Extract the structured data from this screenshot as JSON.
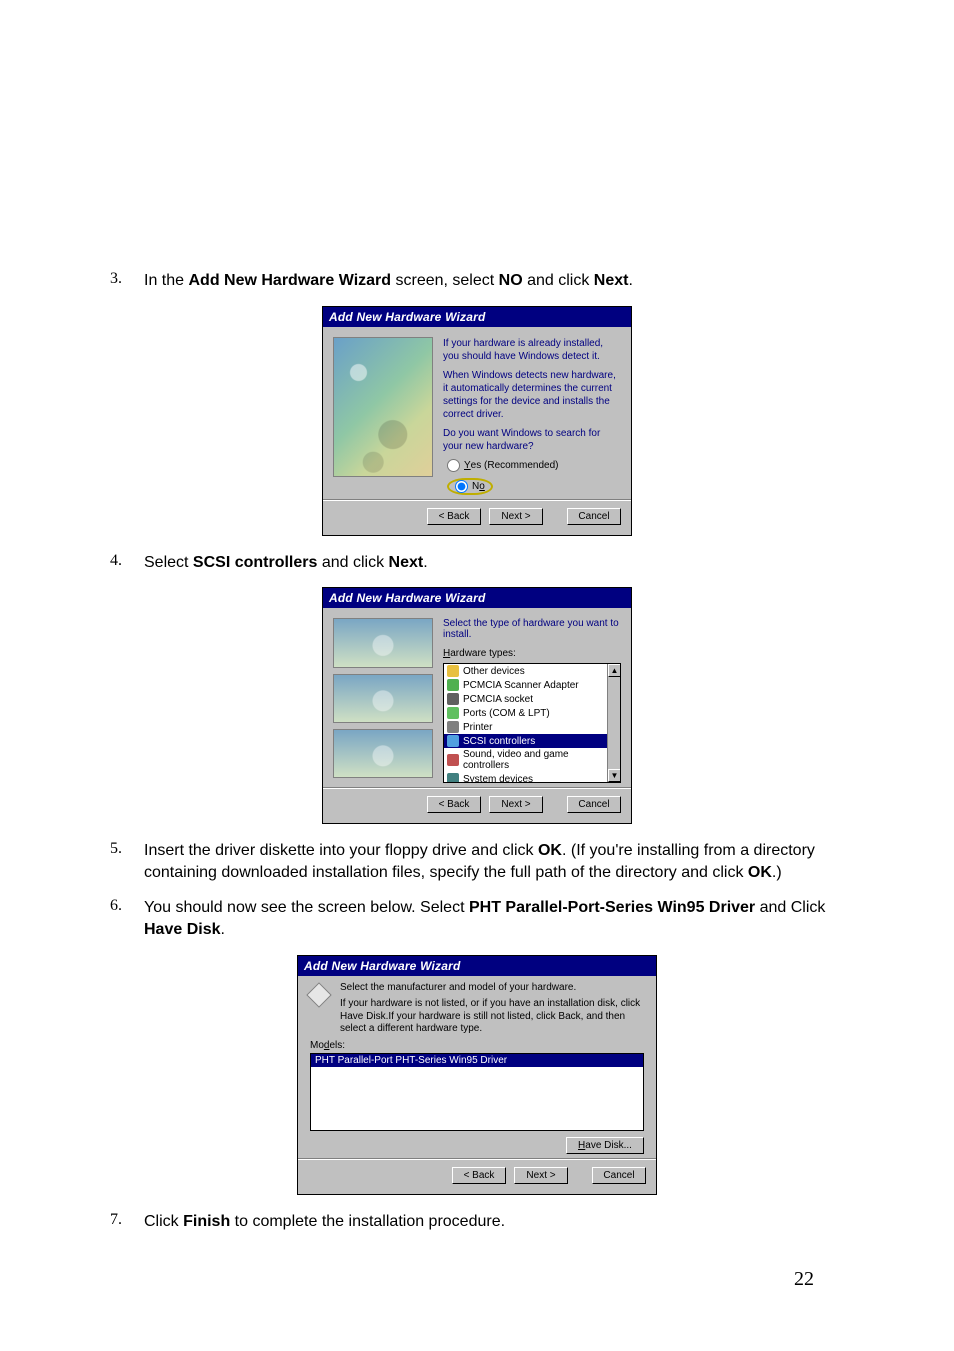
{
  "steps": {
    "s3_before": "In the ",
    "s3_b1": "Add New Hardware Wizard",
    "s3_mid": " screen, select ",
    "s3_b2": "NO",
    "s3_after1": " and click ",
    "s3_b3": "Next",
    "s3_end": ".",
    "s4_before": "Select ",
    "s4_b1": "SCSI controllers",
    "s4_mid": " and click ",
    "s4_b2": "Next",
    "s4_end": ".",
    "s5_before": "Insert the driver diskette into your floppy drive and click ",
    "s5_b1": "OK",
    "s5_mid1": ". (If you're installing from a directory containing downloaded installation files, specify the full path of the directory and click ",
    "s5_b2": "OK",
    "s5_end": ".)",
    "s6_before": "You should now see the screen below.  Select ",
    "s6_b1": "PHT Parallel-Port-Series Win95 Driver",
    "s6_mid": " and Click ",
    "s6_b2": "Have Disk",
    "s6_end": ".",
    "s7_before": "Click ",
    "s7_b1": "Finish",
    "s7_after": " to complete the installation procedure."
  },
  "dlg1": {
    "title": "Add New Hardware Wizard",
    "line1": "If your hardware is already installed, you should have Windows detect it.",
    "line2": "When Windows detects new hardware, it automatically determines the current settings for the device and installs the correct driver.",
    "line3": "Do you want Windows to search for your new hardware?",
    "yes": "Yes (Recommended)",
    "no_label": "No",
    "back": "< Back",
    "next": "Next >",
    "cancel": "Cancel",
    "back_u": "B",
    "next_u": "N"
  },
  "dlg2": {
    "title": "Add New Hardware Wizard",
    "heading": "Select the type of hardware you want to install.",
    "group": "Hardware types:",
    "items": [
      {
        "label": "Other devices",
        "sel": false,
        "color": "#e8c040"
      },
      {
        "label": "PCMCIA Scanner Adapter",
        "sel": false,
        "color": "#50b050"
      },
      {
        "label": "PCMCIA socket",
        "sel": false,
        "color": "#606060"
      },
      {
        "label": "Ports (COM & LPT)",
        "sel": false,
        "color": "#60c060"
      },
      {
        "label": "Printer",
        "sel": false,
        "color": "#808080"
      },
      {
        "label": "SCSI controllers",
        "sel": true,
        "color": "#50a0e0"
      },
      {
        "label": "Sound, video and game controllers",
        "sel": false,
        "color": "#c05050"
      },
      {
        "label": "System devices",
        "sel": false,
        "color": "#408080"
      }
    ],
    "back": "< Back",
    "next": "Next >",
    "cancel": "Cancel"
  },
  "dlg3": {
    "title": "Add New Hardware Wizard",
    "line1": "Select the manufacturer and model of your hardware.",
    "line2": "If your hardware is not listed, or if you have an installation disk, click Have Disk.If your hardware is still not listed, click Back, and then select a different hardware type.",
    "models_label": "Models:",
    "sel_item": "PHT Parallel-Port PHT-Series Win95 Driver",
    "models_u": "d",
    "havedisk": "Have Disk...",
    "havedisk_u": "H",
    "back": "< Back",
    "next": "Next >",
    "cancel": "Cancel"
  },
  "page_number": "22",
  "colors": {
    "titlebar_bg": "#000080",
    "sel_bg": "#000080",
    "dialog_bg": "#c0c0c0",
    "link_navy": "#000080",
    "oval": "#bfae00"
  }
}
